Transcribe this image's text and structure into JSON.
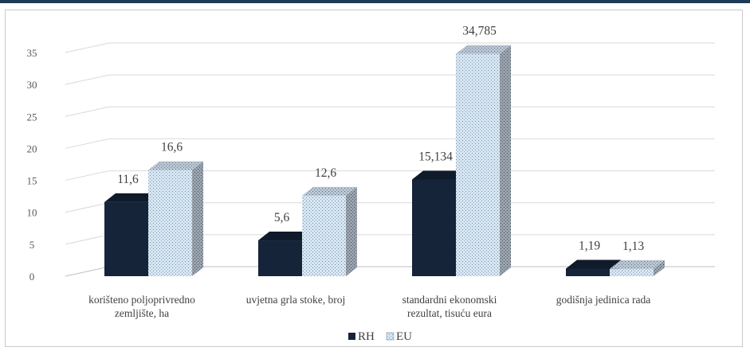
{
  "colors": {
    "rh": "#16243a",
    "eu": "#d7e6f2",
    "grid": "#d9d9d9",
    "axis": "#bfbfbf"
  },
  "chart_data": {
    "type": "bar",
    "title": "",
    "xlabel": "",
    "ylabel": "",
    "ylim": [
      0,
      35
    ],
    "yticks": [
      "0",
      "5",
      "10",
      "15",
      "20",
      "25",
      "30",
      "35"
    ],
    "grid": true,
    "legend_position": "bottom",
    "categories": [
      [
        "korišteno poljoprivredno",
        "zemljište, ha"
      ],
      [
        "uvjetna grla stoke, broj"
      ],
      [
        "standardni ekonomski",
        "rezultat, tisuću eura"
      ],
      [
        "godišnja jedinica rada"
      ]
    ],
    "series": [
      {
        "name": "RH",
        "values": [
          11.6,
          5.6,
          15.134,
          1.19
        ],
        "labels": [
          "11,6",
          "5,6",
          "15,134",
          "1,19"
        ]
      },
      {
        "name": "EU",
        "values": [
          16.6,
          12.6,
          34.785,
          1.13
        ],
        "labels": [
          "16,6",
          "12,6",
          "34,785",
          "1,13"
        ]
      }
    ]
  }
}
